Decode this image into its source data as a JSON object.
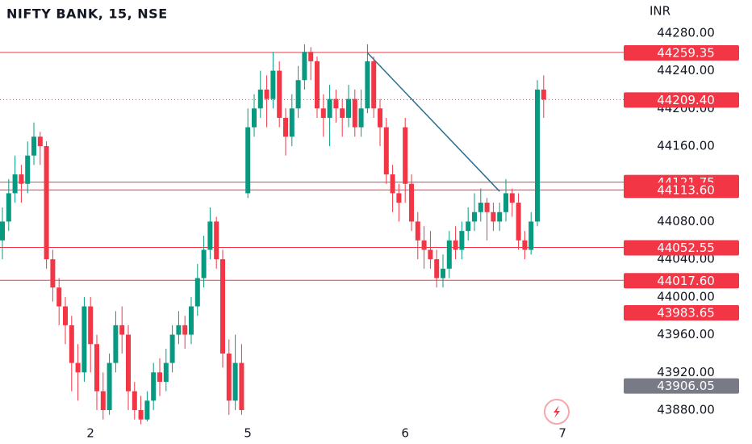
{
  "chart_data": {
    "type": "candlestick",
    "title": "NIFTY BANK, 15, NSE",
    "currency": "INR",
    "up_color": "#089981",
    "down_color": "#f23645",
    "categories": [
      null,
      null,
      null,
      null,
      null,
      null,
      null,
      null,
      null,
      null,
      null,
      null,
      null,
      null,
      "2",
      null,
      null,
      null,
      null,
      null,
      null,
      null,
      null,
      null,
      null,
      null,
      null,
      null,
      null,
      null,
      null,
      null,
      null,
      null,
      null,
      null,
      null,
      null,
      null,
      "5",
      null,
      null,
      null,
      null,
      null,
      null,
      null,
      null,
      null,
      null,
      null,
      null,
      null,
      null,
      null,
      null,
      null,
      null,
      null,
      null,
      null,
      null,
      null,
      null,
      "6",
      null,
      null,
      null,
      null,
      null,
      null,
      null,
      null,
      null,
      null,
      null,
      null,
      null,
      null,
      null,
      null,
      null,
      null,
      null,
      null,
      null,
      null,
      null,
      null,
      "7"
    ],
    "open": [
      44060,
      44080,
      44110,
      44130,
      44120,
      44150,
      44170,
      44160,
      44040,
      44010,
      43990,
      43970,
      43930,
      43920,
      43990,
      43950,
      43900,
      43880,
      43930,
      43970,
      43960,
      43900,
      43880,
      43870,
      43890,
      43920,
      43910,
      43930,
      43960,
      43970,
      43960,
      43990,
      44020,
      44050,
      44080,
      44040,
      43940,
      43890,
      43930,
      44110,
      44180,
      44200,
      44220,
      44210,
      44240,
      44190,
      44170,
      44200,
      44230,
      44260,
      44250,
      44200,
      44190,
      44210,
      44200,
      44190,
      44210,
      44180,
      44200,
      44250,
      44200,
      44180,
      44130,
      44110,
      44180,
      44120,
      44080,
      44060,
      44050,
      44040,
      44020,
      44030,
      44060,
      44050,
      44070,
      44080,
      44090,
      44100,
      44090,
      44080,
      44090,
      44110,
      44100,
      44060,
      44050,
      44080,
      44220,
      null,
      null,
      null
    ],
    "high": [
      44095,
      44125,
      44150,
      44140,
      44165,
      44185,
      44175,
      44165,
      44050,
      44020,
      44000,
      43980,
      43950,
      44000,
      44000,
      43960,
      43920,
      43940,
      43985,
      43990,
      43970,
      43910,
      43895,
      43900,
      43930,
      43935,
      43945,
      43970,
      43985,
      43980,
      44000,
      44035,
      44065,
      44095,
      44085,
      44050,
      43955,
      43960,
      43950,
      44200,
      44215,
      44240,
      44235,
      44260,
      44250,
      44200,
      44215,
      44245,
      44268,
      44265,
      44255,
      44215,
      44225,
      44220,
      44210,
      44225,
      44220,
      44220,
      44268,
      44255,
      44210,
      44190,
      44140,
      44120,
      44190,
      44130,
      44090,
      44075,
      44070,
      44050,
      44045,
      44070,
      44075,
      44080,
      44095,
      44110,
      44115,
      44105,
      44100,
      44100,
      44125,
      44115,
      44110,
      44070,
      44090,
      44230,
      44235,
      null,
      null,
      null
    ],
    "low": [
      44040,
      44070,
      44100,
      44100,
      44110,
      44140,
      44140,
      44030,
      43995,
      43970,
      43950,
      43900,
      43890,
      43910,
      43920,
      43880,
      43870,
      43875,
      43920,
      43940,
      43880,
      43870,
      43865,
      43868,
      43880,
      43895,
      43900,
      43920,
      43950,
      43945,
      43950,
      43980,
      44010,
      44040,
      44030,
      43925,
      43875,
      43880,
      43875,
      44105,
      44170,
      44190,
      44180,
      44200,
      44180,
      44150,
      44160,
      44190,
      44220,
      44230,
      44190,
      44170,
      44160,
      44185,
      44170,
      44180,
      44170,
      44170,
      44195,
      44190,
      44160,
      44120,
      44090,
      44080,
      44100,
      44070,
      44040,
      44030,
      44030,
      44010,
      44010,
      44020,
      44040,
      44040,
      44060,
      44070,
      44080,
      44060,
      44070,
      44070,
      44080,
      44085,
      44050,
      44040,
      44045,
      44075,
      44190,
      null,
      null,
      null
    ],
    "close": [
      44080,
      44110,
      44130,
      44120,
      44150,
      44170,
      44160,
      44040,
      44010,
      43990,
      43970,
      43930,
      43920,
      43990,
      43950,
      43900,
      43880,
      43930,
      43970,
      43960,
      43900,
      43880,
      43870,
      43890,
      43920,
      43910,
      43930,
      43960,
      43970,
      43960,
      43990,
      44020,
      44050,
      44080,
      44040,
      43940,
      43890,
      43930,
      43880,
      44180,
      44200,
      44220,
      44210,
      44240,
      44190,
      44170,
      44200,
      44230,
      44260,
      44250,
      44200,
      44190,
      44210,
      44200,
      44190,
      44210,
      44180,
      44200,
      44250,
      44200,
      44180,
      44130,
      44110,
      44100,
      44120,
      44080,
      44060,
      44050,
      44040,
      44020,
      44030,
      44060,
      44050,
      44070,
      44080,
      44090,
      44100,
      44090,
      44080,
      44090,
      44110,
      44100,
      44060,
      44050,
      44080,
      44220,
      44209.4,
      null,
      null,
      null
    ],
    "ylim": [
      43868,
      44315
    ],
    "yticks": [
      {
        "value": 44280,
        "label": "44280.00"
      },
      {
        "value": 44240,
        "label": "44240.00"
      },
      {
        "value": 44200,
        "label": "44200.00"
      },
      {
        "value": 44160,
        "label": "44160.00"
      },
      {
        "value": 44080,
        "label": "44080.00"
      },
      {
        "value": 44040,
        "label": "44040.00"
      },
      {
        "value": 44000,
        "label": "44000.00"
      },
      {
        "value": 43960,
        "label": "43960.00"
      },
      {
        "value": 43920,
        "label": "43920.00"
      },
      {
        "value": 43880,
        "label": "43880.00"
      }
    ],
    "price_lines": [
      44259.35,
      44121.75,
      44113.6,
      44052.55,
      44017.6
    ],
    "price_line_labels": [
      "44259.35",
      "44121.75",
      "44113.60",
      "44052.55",
      "44017.60"
    ],
    "current_price": 44209.4,
    "current_price_label": "44209.40",
    "extra_labels": [
      {
        "value": 43983.65,
        "label": "43983.65",
        "color": "#f23645"
      },
      {
        "value": 43906.05,
        "label": "43906.05",
        "color": "#787b86"
      }
    ],
    "price_line_color": "#f23645",
    "trendline": {
      "x": [
        58,
        79
      ],
      "y": [
        44259,
        44112
      ],
      "color": "#2a6f8f"
    }
  }
}
